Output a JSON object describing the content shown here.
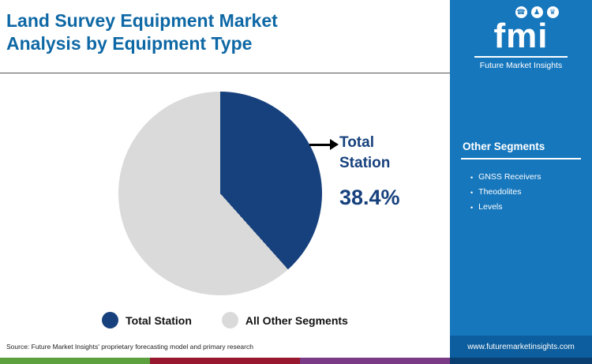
{
  "title": {
    "full": "Land Survey Equipment Market Analysis by Equipment Type",
    "line1": "Land Survey Equipment Market",
    "line2": "Analysis by Equipment Type"
  },
  "chart_data": {
    "type": "pie",
    "title": "Land Survey Equipment Market Analysis by Equipment Type",
    "slices": [
      {
        "label": "Total Station",
        "value": 38.4,
        "color": "#17417d"
      },
      {
        "label": "All Other Segments",
        "value": 61.6,
        "color": "#dadada"
      }
    ],
    "annotation": {
      "label": "Total\nStation",
      "value": "38.4%"
    },
    "legend_position": "bottom"
  },
  "legend": [
    {
      "label": "Total Station"
    },
    {
      "label": "All Other Segments"
    }
  ],
  "sidebar": {
    "logo_word": "fmi",
    "logo_icons": [
      "phone-icon",
      "person-icon",
      "trophy-icon"
    ],
    "logo_glyphs": {
      "phone": "☎",
      "person": "♟",
      "trophy": "♛"
    },
    "brand": "Future Market Insights",
    "heading": "Other Segments",
    "items": [
      "GNSS Receivers",
      "Theodolites",
      "Levels"
    ],
    "bullet": "•",
    "url": "www.futuremarketinsights.com"
  },
  "source": "Source: Future Market Insights' proprietary forecasting model and primary research",
  "colors": {
    "title_blue": "#0e68a5",
    "navy": "#17417d",
    "pie_gray": "#dadada",
    "sidebar_blue": "#1677bd",
    "url_band_blue": "#0d5e9e",
    "stripe": [
      "#5da13f",
      "#97182f",
      "#7b3a86",
      "#0b3e71"
    ]
  }
}
